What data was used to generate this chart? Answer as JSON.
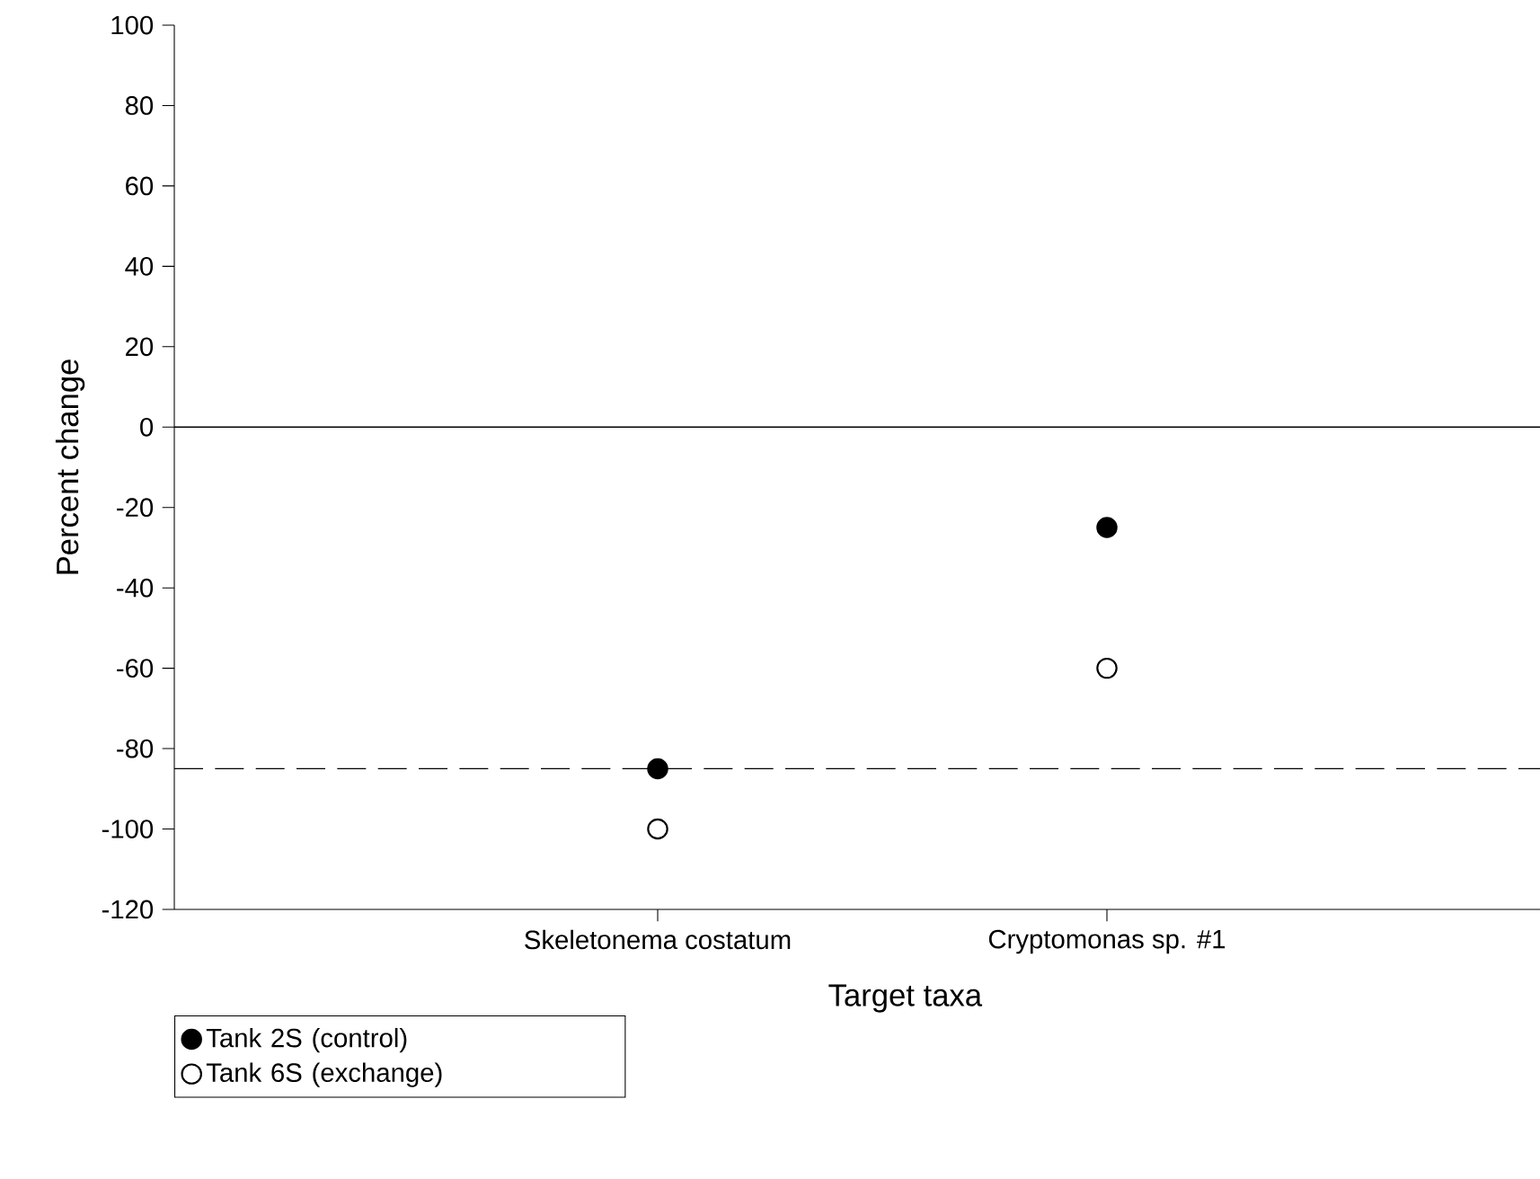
{
  "chart_data": {
    "type": "scatter",
    "xlabel": "Target taxa",
    "ylabel": "Percent change",
    "categories": [
      "Skeletonema costatum",
      "Cryptomonas sp. #1"
    ],
    "series": [
      {
        "name": "Tank 2S (control)",
        "color": "#000000",
        "values": [
          -85,
          -25
        ]
      },
      {
        "name": "Tank 6S (exchange)",
        "color": "#ffffff",
        "values": [
          -100,
          -60
        ]
      }
    ],
    "ylim": [
      -120,
      100
    ],
    "yticks": [
      -120,
      -100,
      -80,
      -60,
      -40,
      -20,
      0,
      20,
      40,
      60,
      80,
      100
    ],
    "ref_lines": [
      {
        "axis": "y",
        "value": 0,
        "line_style": "solid"
      },
      {
        "axis": "y",
        "value": -85,
        "line_style": "dashed"
      }
    ],
    "legend": "bottom left",
    "grid": false
  }
}
